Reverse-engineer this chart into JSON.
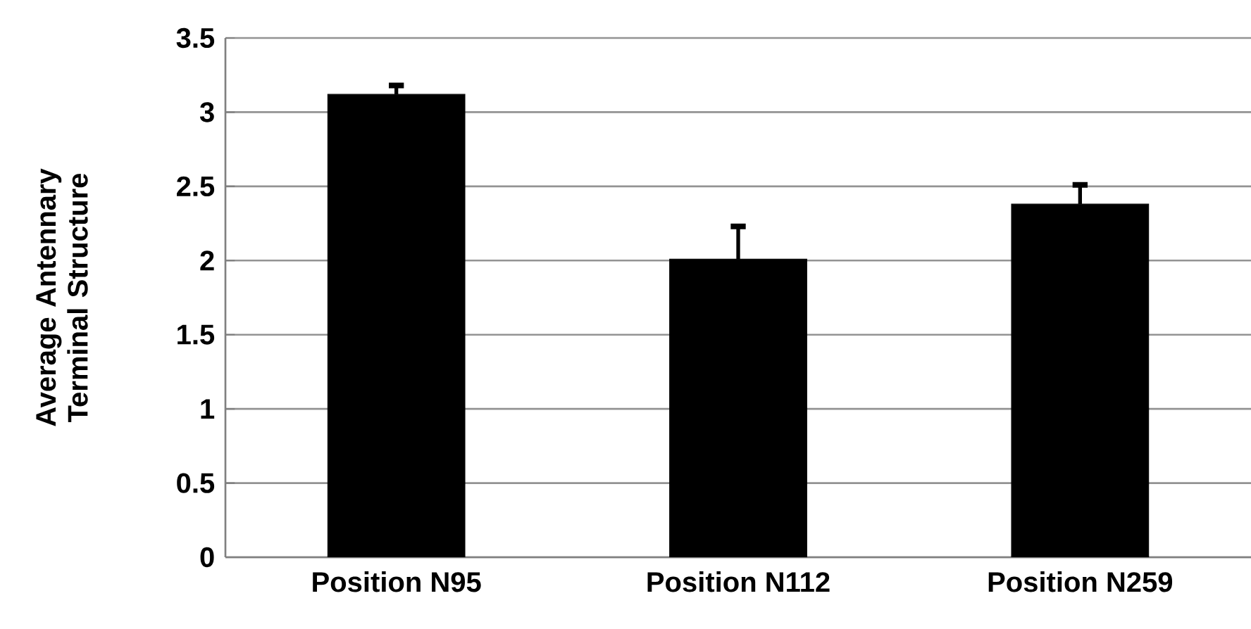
{
  "chart_data": {
    "type": "bar",
    "ylabel": "Average Antennary Terminal Structure",
    "categories": [
      "Position N95",
      "Position N112",
      "Position N259"
    ],
    "values": [
      3.12,
      2.01,
      2.38
    ],
    "errors": [
      [
        3.12,
        3.18
      ],
      [
        2.01,
        2.23
      ],
      [
        2.38,
        2.51
      ]
    ],
    "color": "#000000",
    "ylim": [
      0,
      3.5
    ],
    "yticks": [
      0,
      0.5,
      1,
      1.5,
      2,
      2.5,
      3,
      3.5
    ],
    "grid": "y"
  }
}
